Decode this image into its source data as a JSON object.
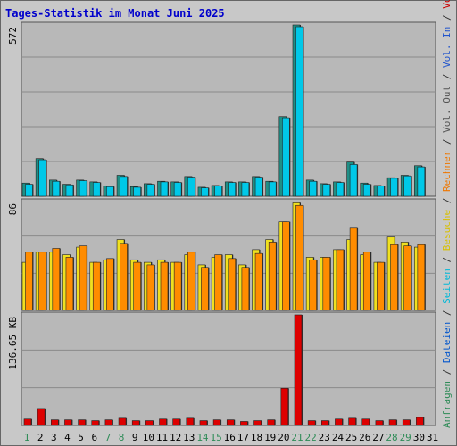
{
  "title": "Tages-Statistik im Monat Juni 2025",
  "right_legend": [
    {
      "text": "Anfragen",
      "color": "#2e8b57"
    },
    {
      "text": " / ",
      "color": "#333333"
    },
    {
      "text": "Dateien",
      "color": "#0055cc"
    },
    {
      "text": " / ",
      "color": "#333333"
    },
    {
      "text": "Seiten",
      "color": "#00b8d8"
    },
    {
      "text": " / ",
      "color": "#333333"
    },
    {
      "text": "Besuche",
      "color": "#d8c000"
    },
    {
      "text": " / ",
      "color": "#333333"
    },
    {
      "text": "Rechner",
      "color": "#ee7700"
    },
    {
      "text": " / ",
      "color": "#333333"
    },
    {
      "text": "Vol. Out",
      "color": "#555555"
    },
    {
      "text": " / ",
      "color": "#333333"
    },
    {
      "text": "Vol. In",
      "color": "#2255cc"
    },
    {
      "text": " / ",
      "color": "#333333"
    },
    {
      "text": "Volumen",
      "color": "#cc0000"
    }
  ],
  "colors": {
    "background": "#c0c0c0",
    "panel": "#b8b8b8",
    "title": "#0000cc",
    "weekday_label": "#000000",
    "weekend_label": "#2e8b57",
    "requests": "#1f8f86",
    "pages": "#00c8e8",
    "visits": "#f0e020",
    "hosts": "#ff8c00",
    "volume": "#dd0000"
  },
  "chart_data": [
    {
      "type": "bar",
      "panel": "top",
      "ylabel": "572",
      "ymax": 572,
      "x": [
        1,
        2,
        3,
        4,
        5,
        6,
        7,
        8,
        9,
        10,
        11,
        12,
        13,
        14,
        15,
        16,
        17,
        18,
        19,
        20,
        21,
        22,
        23,
        24,
        25,
        26,
        27,
        28,
        29,
        30
      ],
      "series": [
        {
          "key": "requests",
          "values": [
            44,
            126,
            54,
            40,
            54,
            48,
            34,
            70,
            32,
            42,
            50,
            48,
            66,
            30,
            36,
            48,
            48,
            66,
            50,
            266,
            572,
            54,
            42,
            48,
            114,
            44,
            36,
            62,
            70,
            102
          ]
        },
        {
          "key": "pages",
          "values": [
            40,
            122,
            50,
            38,
            52,
            46,
            32,
            66,
            30,
            40,
            48,
            46,
            64,
            28,
            34,
            46,
            46,
            64,
            48,
            262,
            566,
            50,
            40,
            46,
            106,
            40,
            34,
            60,
            68,
            98
          ]
        }
      ]
    },
    {
      "type": "bar",
      "panel": "middle",
      "ylabel": "86",
      "ymax": 86,
      "x": [
        1,
        2,
        3,
        4,
        5,
        6,
        7,
        8,
        9,
        10,
        11,
        12,
        13,
        14,
        15,
        16,
        17,
        18,
        19,
        20,
        21,
        22,
        23,
        24,
        25,
        26,
        27,
        28,
        29,
        30
      ],
      "series": [
        {
          "key": "visits",
          "values": [
            38,
            46,
            46,
            44,
            50,
            38,
            40,
            56,
            40,
            38,
            40,
            38,
            44,
            36,
            42,
            44,
            36,
            48,
            56,
            70,
            85,
            42,
            42,
            48,
            56,
            44,
            38,
            58,
            54,
            50
          ]
        },
        {
          "key": "hosts",
          "values": [
            46,
            46,
            49,
            42,
            51,
            38,
            41,
            53,
            38,
            36,
            38,
            38,
            46,
            34,
            44,
            41,
            34,
            45,
            54,
            70,
            83,
            40,
            42,
            48,
            65,
            46,
            38,
            52,
            51,
            52
          ]
        }
      ]
    },
    {
      "type": "bar",
      "panel": "bottom",
      "ylabel": "136.65 KB",
      "ymax": 136.65,
      "x": [
        1,
        2,
        3,
        4,
        5,
        6,
        7,
        8,
        9,
        10,
        11,
        12,
        13,
        14,
        15,
        16,
        17,
        18,
        19,
        20,
        21,
        22,
        23,
        24,
        25,
        26,
        27,
        28,
        29,
        30
      ],
      "series": [
        {
          "key": "volume",
          "values": [
            8,
            21,
            7,
            7,
            7,
            6,
            7,
            9,
            6,
            6,
            8,
            8,
            9,
            6,
            7,
            7,
            5,
            6,
            7,
            46,
            136.65,
            6,
            6,
            8,
            9,
            8,
            6,
            7,
            7,
            10
          ]
        }
      ]
    }
  ],
  "x_labels": [
    {
      "text": "1",
      "weekend": true
    },
    {
      "text": "2",
      "weekend": false
    },
    {
      "text": "3",
      "weekend": false
    },
    {
      "text": "4",
      "weekend": false
    },
    {
      "text": "5",
      "weekend": false
    },
    {
      "text": "6",
      "weekend": false
    },
    {
      "text": "7",
      "weekend": true
    },
    {
      "text": "8",
      "weekend": true
    },
    {
      "text": "9",
      "weekend": false
    },
    {
      "text": "10",
      "weekend": false
    },
    {
      "text": "11",
      "weekend": false
    },
    {
      "text": "12",
      "weekend": false
    },
    {
      "text": "13",
      "weekend": false
    },
    {
      "text": "14",
      "weekend": true
    },
    {
      "text": "15",
      "weekend": true
    },
    {
      "text": "16",
      "weekend": false
    },
    {
      "text": "17",
      "weekend": false
    },
    {
      "text": "18",
      "weekend": false
    },
    {
      "text": "19",
      "weekend": false
    },
    {
      "text": "20",
      "weekend": false
    },
    {
      "text": "21",
      "weekend": true
    },
    {
      "text": "22",
      "weekend": true
    },
    {
      "text": "23",
      "weekend": false
    },
    {
      "text": "24",
      "weekend": false
    },
    {
      "text": "25",
      "weekend": false
    },
    {
      "text": "26",
      "weekend": false
    },
    {
      "text": "27",
      "weekend": false
    },
    {
      "text": "28",
      "weekend": true
    },
    {
      "text": "29",
      "weekend": true
    },
    {
      "text": "30",
      "weekend": false
    },
    {
      "text": "31",
      "weekend": false
    }
  ]
}
